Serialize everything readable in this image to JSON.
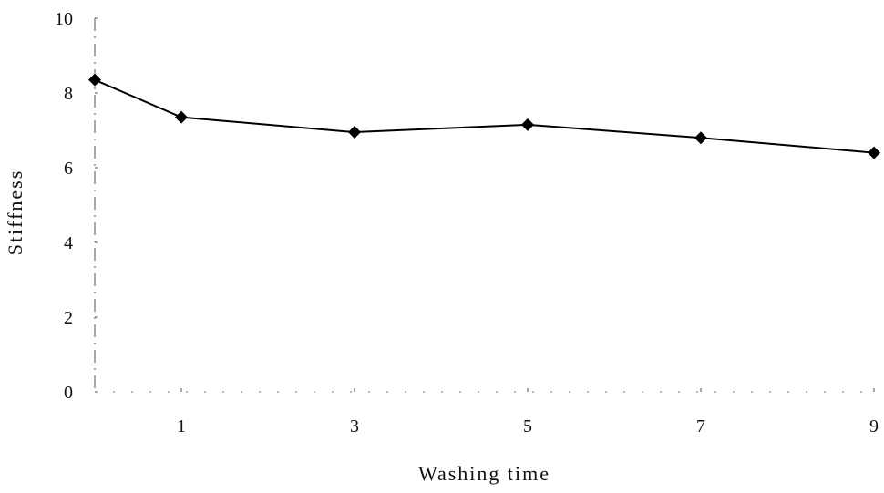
{
  "chart_data": {
    "type": "line",
    "title": "",
    "xlabel": "Washing time",
    "ylabel": "Stiffness",
    "xlim": [
      0,
      9
    ],
    "ylim": [
      0,
      10
    ],
    "x_ticks": [
      1,
      3,
      5,
      7,
      9
    ],
    "y_ticks": [
      0,
      2,
      4,
      6,
      8,
      10
    ],
    "grid": false,
    "legend": "none",
    "series": [
      {
        "x": [
          0,
          1,
          3,
          5,
          7,
          9
        ],
        "values": [
          8.35,
          7.35,
          6.95,
          7.15,
          6.8,
          6.4
        ],
        "color": "#000000",
        "marker": "diamond"
      }
    ]
  }
}
